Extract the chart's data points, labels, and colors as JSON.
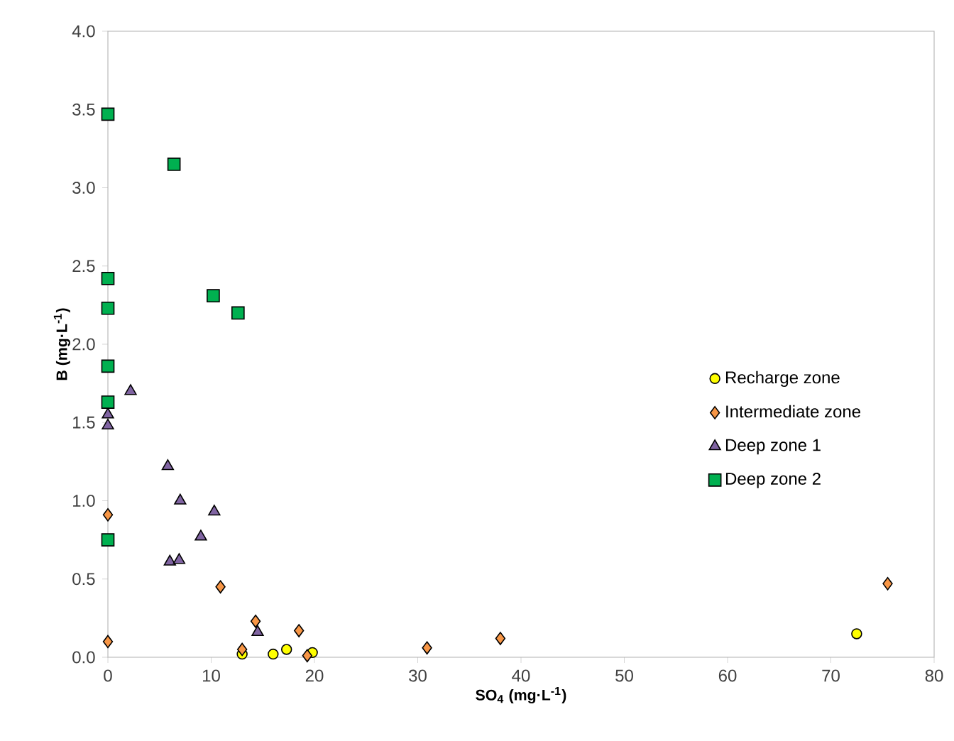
{
  "chart_data": {
    "type": "scatter",
    "xlabel": "SO$_{4}$ (mg·L$^{-1}$)",
    "ylabel": "B (mg·L$^{-1}$)",
    "xlim": [
      0,
      80
    ],
    "ylim": [
      0,
      4.0
    ],
    "xticks": [
      0,
      10,
      20,
      30,
      40,
      50,
      60,
      70,
      80
    ],
    "yticks": [
      {
        "value": 0,
        "label": "0.0"
      },
      {
        "value": 0.5,
        "label": "0.5"
      },
      {
        "value": 1.0,
        "label": "1.0"
      },
      {
        "value": 1.5,
        "label": "1.5"
      },
      {
        "value": 2.0,
        "label": "2.0"
      },
      {
        "value": 2.5,
        "label": "2.5"
      },
      {
        "value": 3.0,
        "label": "3.0"
      },
      {
        "value": 3.5,
        "label": "3.5"
      },
      {
        "value": 4.0,
        "label": "4.0"
      }
    ],
    "grid": false,
    "legend": "right",
    "series": [
      {
        "name": "Recharge zone",
        "color": "#ffff00",
        "marker": "circle",
        "x": [
          13,
          16,
          17.3,
          19.8,
          72.5
        ],
        "values": [
          0.02,
          0.02,
          0.05,
          0.03,
          0.15
        ]
      },
      {
        "name": "Intermediate zone",
        "color": "#f79646",
        "marker": "diamond",
        "x": [
          0,
          0,
          10.9,
          14.3,
          13,
          18.5,
          19.3,
          30.9,
          38,
          75.5
        ],
        "values": [
          0.1,
          0.91,
          0.45,
          0.23,
          0.05,
          0.17,
          0.01,
          0.06,
          0.12,
          0.47
        ]
      },
      {
        "name": "Deep zone 1",
        "color": "#8064a2",
        "marker": "triangle",
        "x": [
          2.2,
          0,
          0,
          5.8,
          7,
          10.3,
          9,
          6,
          6.9,
          14.5
        ],
        "values": [
          1.7,
          1.55,
          1.48,
          1.22,
          1.0,
          0.93,
          0.77,
          0.61,
          0.62,
          0.16
        ]
      },
      {
        "name": "Deep zone 2",
        "color": "#00b050",
        "marker": "square",
        "x": [
          0,
          6.4,
          0,
          0,
          10.2,
          12.6,
          0,
          0,
          0
        ],
        "values": [
          3.47,
          3.15,
          2.42,
          2.23,
          2.31,
          2.2,
          1.86,
          1.63,
          0.75
        ]
      }
    ]
  }
}
